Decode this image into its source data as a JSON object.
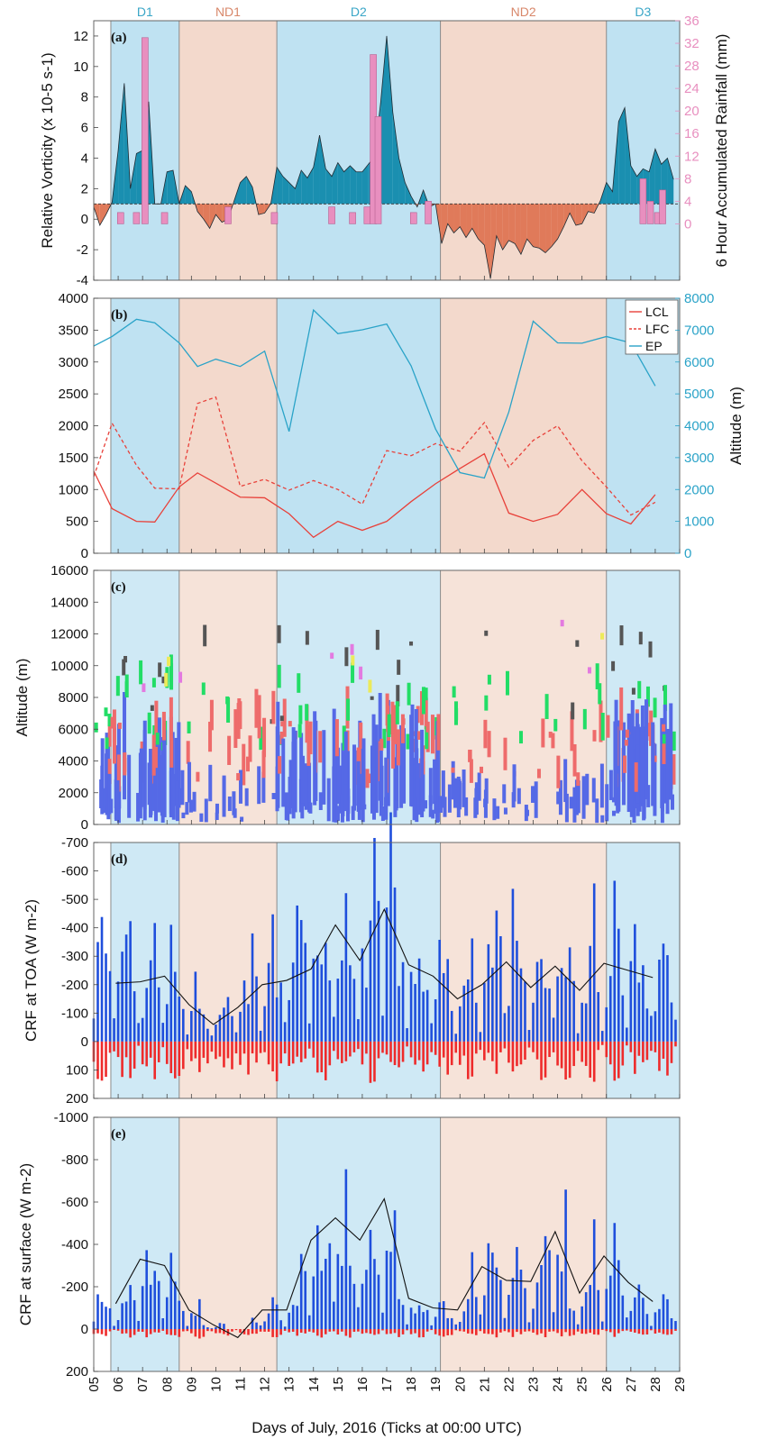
{
  "figure": {
    "xlabel": "Days of July, 2016 (Ticks at 00:00 UTC)",
    "x_ticks": [
      "05",
      "06",
      "07",
      "08",
      "09",
      "10",
      "11",
      "12",
      "13",
      "14",
      "15",
      "16",
      "17",
      "18",
      "19",
      "20",
      "21",
      "22",
      "23",
      "24",
      "25",
      "26",
      "27",
      "28",
      "29"
    ],
    "x_range": [
      5,
      29
    ],
    "periods": [
      {
        "label": "D1",
        "start": 5.7,
        "end": 8.5,
        "type": "disturbed"
      },
      {
        "label": "ND1",
        "start": 8.5,
        "end": 12.5,
        "type": "non-disturbed"
      },
      {
        "label": "D2",
        "start": 12.5,
        "end": 19.2,
        "type": "disturbed"
      },
      {
        "label": "ND2",
        "start": 19.2,
        "end": 26.0,
        "type": "non-disturbed"
      },
      {
        "label": "D3",
        "start": 26.0,
        "end": 29.0,
        "type": "disturbed"
      }
    ],
    "colors": {
      "disturbed_band": "#bfe2f2",
      "nondisturbed_band": "#f3d9cc",
      "disturbed_label": "#3aa6c7",
      "nondisturbed_label": "#d8876a",
      "vorticity_pos": "#1a8fb0",
      "vorticity_neg": "#e07a5a",
      "rainfall": "#e88fbf",
      "lcl": "#e8413a",
      "ep": "#2aa3c8",
      "crf_neg": "#1f4fdc",
      "crf_pos": "#ee2b2b"
    }
  },
  "chart_data": [
    {
      "panel": "(a)",
      "type": "area",
      "ylabel": "Relative Vorticity (x 10-5 s-1)",
      "ylabel_right": "6 Hour Accumulated Rainfall (mm)",
      "ylim": [
        -4,
        13
      ],
      "yticks": [
        -4,
        -2,
        0,
        2,
        4,
        6,
        8,
        10,
        12
      ],
      "ylim_right": [
        -10,
        36
      ],
      "yticks_right": [
        0,
        4,
        8,
        12,
        16,
        20,
        24,
        28,
        32,
        36
      ],
      "baseline": 1,
      "vorticity": {
        "x": [
          5.0,
          5.25,
          5.5,
          5.75,
          6.0,
          6.25,
          6.5,
          6.75,
          7.0,
          7.25,
          7.5,
          7.75,
          8.0,
          8.25,
          8.5,
          8.75,
          9.0,
          9.25,
          9.5,
          9.75,
          10.0,
          10.25,
          10.5,
          10.75,
          11.0,
          11.25,
          11.5,
          11.75,
          12.0,
          12.25,
          12.5,
          12.75,
          13.0,
          13.25,
          13.5,
          13.75,
          14.0,
          14.25,
          14.5,
          14.75,
          15.0,
          15.25,
          15.5,
          15.75,
          16.0,
          16.25,
          16.5,
          16.75,
          17.0,
          17.25,
          17.5,
          17.75,
          18.0,
          18.25,
          18.5,
          18.75,
          19.0,
          19.25,
          19.5,
          19.75,
          20.0,
          20.25,
          20.5,
          20.75,
          21.0,
          21.25,
          21.5,
          21.75,
          22.0,
          22.25,
          22.5,
          22.75,
          23.0,
          23.25,
          23.5,
          23.75,
          24.0,
          24.25,
          24.5,
          24.75,
          25.0,
          25.25,
          25.5,
          25.75,
          26.0,
          26.25,
          26.5,
          26.75,
          27.0,
          27.25,
          27.5,
          27.75,
          28.0,
          28.25,
          28.5,
          28.75
        ],
        "y": [
          0.8,
          -0.4,
          0.3,
          1.1,
          4.5,
          8.9,
          2.0,
          4.3,
          4.5,
          7.7,
          1.0,
          1.0,
          3.1,
          3.2,
          1.0,
          2.2,
          1.8,
          0.5,
          0.0,
          -0.6,
          0.3,
          -0.2,
          0.0,
          1.2,
          2.4,
          2.8,
          2.1,
          0.3,
          0.4,
          1.0,
          3.4,
          2.8,
          2.4,
          2.0,
          3.2,
          2.7,
          3.4,
          5.5,
          3.3,
          2.8,
          3.7,
          3.1,
          3.5,
          3.1,
          3.1,
          3.6,
          4.1,
          7.6,
          12.0,
          7.0,
          4.0,
          2.4,
          1.5,
          0.8,
          1.9,
          0.8,
          1.0,
          -1.6,
          -0.3,
          -0.9,
          -0.5,
          -1.2,
          -0.6,
          -1.3,
          -1.7,
          -3.9,
          -1.1,
          -2.0,
          -1.4,
          -1.6,
          -2.3,
          -1.3,
          -1.8,
          -1.9,
          -2.2,
          -1.8,
          -1.3,
          -0.5,
          0.4,
          -0.4,
          -0.3,
          0.5,
          0.4,
          1.2,
          2.4,
          1.8,
          6.4,
          7.3,
          3.5,
          2.8,
          3.3,
          3.1,
          4.6,
          3.6,
          4.0,
          2.6
        ]
      },
      "rainfall": {
        "x": [
          6.1,
          6.75,
          7.1,
          7.9,
          10.5,
          12.4,
          14.75,
          15.6,
          16.2,
          16.45,
          16.65,
          18.1,
          18.7,
          27.5,
          27.8,
          28.1,
          28.3
        ],
        "y": [
          2,
          2,
          33,
          2,
          3,
          2,
          3,
          2,
          3,
          30,
          19,
          2,
          4,
          8,
          4,
          2,
          6
        ]
      }
    },
    {
      "panel": "(b)",
      "type": "line",
      "ylabel": "",
      "ylabel_right": "Altitude (m)",
      "ylim": [
        0,
        4000
      ],
      "yticks": [
        0,
        500,
        1000,
        1500,
        2000,
        2500,
        3000,
        3500,
        4000
      ],
      "ylim_right": [
        0,
        8000
      ],
      "yticks_right": [
        0,
        1000,
        2000,
        3000,
        4000,
        5000,
        6000,
        7000,
        8000
      ],
      "legend": [
        "LCL",
        "LFC",
        "EP"
      ],
      "legend_position": "top-right",
      "x": [
        5.0,
        5.75,
        6.75,
        7.5,
        8.5,
        9.25,
        10.0,
        11.0,
        12.0,
        13.0,
        14.0,
        15.0,
        16.0,
        17.0,
        18.0,
        19.0,
        20.0,
        21.0,
        22.0,
        23.0,
        24.0,
        25.0,
        26.0,
        27.0,
        28.0
      ],
      "series": [
        {
          "name": "LCL",
          "axis": "left",
          "style": "solid",
          "values": [
            1290,
            700,
            500,
            490,
            1040,
            1260,
            1100,
            880,
            870,
            620,
            250,
            500,
            360,
            500,
            810,
            1090,
            1330,
            1560,
            630,
            500,
            610,
            1000,
            620,
            460,
            920
          ]
        },
        {
          "name": "LFC",
          "axis": "left",
          "style": "dashed",
          "values": [
            1200,
            2040,
            1380,
            1020,
            1010,
            2350,
            2450,
            1050,
            1160,
            990,
            1140,
            1000,
            770,
            1610,
            1530,
            1720,
            1600,
            2050,
            1350,
            1770,
            2000,
            1450,
            1040,
            600,
            800
          ]
        },
        {
          "name": "EP",
          "axis": "right",
          "style": "solid",
          "values": [
            6500,
            6800,
            7340,
            7230,
            6600,
            5860,
            6090,
            5860,
            6340,
            3820,
            7630,
            6890,
            7010,
            7190,
            5880,
            3900,
            2530,
            2360,
            4430,
            7280,
            6600,
            6590,
            6800,
            6600,
            5250
          ]
        }
      ]
    },
    {
      "panel": "(c)",
      "type": "scatter",
      "ylabel": "Altitude (m)",
      "ylim": [
        0,
        16000
      ],
      "yticks": [
        0,
        2000,
        4000,
        6000,
        8000,
        10000,
        12000,
        14000,
        16000
      ]
    },
    {
      "panel": "(d)",
      "type": "bar",
      "ylabel": "CRF at TOA (W m-2)",
      "ylim": [
        -700,
        200
      ],
      "ytick_labels": [
        "-700",
        "-600",
        "-500",
        "-400",
        "-300",
        "-200",
        "-100",
        "0",
        "100",
        "200"
      ],
      "ytick_values": [
        -700,
        -600,
        -500,
        -400,
        -300,
        -200,
        -100,
        0,
        100,
        200
      ],
      "daily_mean": {
        "x": [
          5.9,
          6.9,
          7.9,
          8.9,
          9.9,
          10.9,
          11.9,
          12.9,
          13.9,
          14.9,
          15.9,
          16.9,
          17.9,
          18.9,
          19.9,
          20.9,
          21.9,
          22.9,
          23.9,
          24.9,
          25.9,
          26.9,
          27.9
        ],
        "y": [
          -205,
          -210,
          -230,
          -130,
          -60,
          -120,
          -200,
          -215,
          -255,
          -410,
          -285,
          -465,
          -270,
          -230,
          -150,
          -200,
          -280,
          -190,
          -265,
          -180,
          -275,
          -250,
          -225
        ]
      }
    },
    {
      "panel": "(e)",
      "type": "bar",
      "ylabel": "CRF at surface (W m-2)",
      "ylim": [
        -1000,
        200
      ],
      "ytick_labels": [
        "-1000",
        "-800",
        "-600",
        "-400",
        "-200",
        "0",
        "200"
      ],
      "ytick_values": [
        -1000,
        -800,
        -600,
        -400,
        -200,
        0,
        200
      ],
      "daily_mean": {
        "x": [
          5.9,
          6.9,
          7.9,
          8.9,
          9.9,
          10.9,
          11.9,
          12.9,
          13.9,
          14.9,
          15.9,
          16.9,
          17.9,
          18.9,
          19.9,
          20.9,
          21.9,
          22.9,
          23.9,
          24.9,
          25.9,
          26.9,
          27.9
        ],
        "y": [
          -120,
          -330,
          -300,
          -90,
          -20,
          40,
          -90,
          -90,
          -420,
          -525,
          -420,
          -615,
          -145,
          -100,
          -90,
          -295,
          -230,
          -225,
          -460,
          -170,
          -345,
          -220,
          -130
        ]
      }
    }
  ]
}
